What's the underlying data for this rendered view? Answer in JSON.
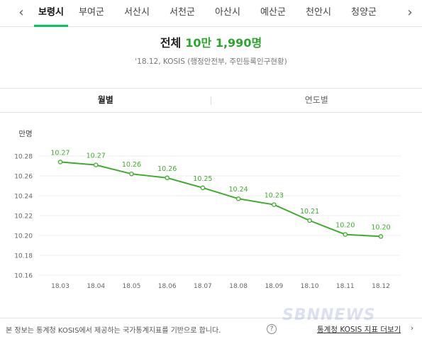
{
  "nav": {
    "left_arrow": "‹",
    "right_arrow": "›",
    "tabs": [
      "보령시",
      "부여군",
      "서산시",
      "서천군",
      "아산시",
      "예산군",
      "천안시",
      "청양군"
    ],
    "active_index": 0
  },
  "summary": {
    "label": "전체",
    "value": "10만 1,990명",
    "source": "'18.12, KOSIS (행정안전부, 주민등록인구현황)"
  },
  "period_tabs": [
    "월별",
    "연도별"
  ],
  "period_active_index": 0,
  "chart_data": {
    "type": "line",
    "ylabel": "만명",
    "categories": [
      "18.03",
      "18.04",
      "18.05",
      "18.06",
      "18.07",
      "18.08",
      "18.09",
      "18.10",
      "18.11",
      "18.12"
    ],
    "values": [
      10.274,
      10.271,
      10.262,
      10.258,
      10.248,
      10.237,
      10.231,
      10.215,
      10.201,
      10.199
    ],
    "data_labels": [
      "10.27",
      "10.27",
      "10.26",
      "10.26",
      "10.25",
      "10.24",
      "10.23",
      "10.21",
      "10.20",
      "10.20"
    ],
    "yticks": [
      "10.16",
      "10.18",
      "10.20",
      "10.22",
      "10.24",
      "10.26",
      "10.28"
    ],
    "ylim": [
      10.16,
      10.28
    ],
    "grid": true,
    "color": "#3cae2b"
  },
  "footer": {
    "note": "본 정보는 통계청 KOSIS에서 제공하는 국가통계지표를 기반으로 합니다.",
    "help_icon": "?",
    "link": "통계청 KOSIS 지표 더보기",
    "arrow": "›"
  },
  "watermark": "SBNNEWS"
}
